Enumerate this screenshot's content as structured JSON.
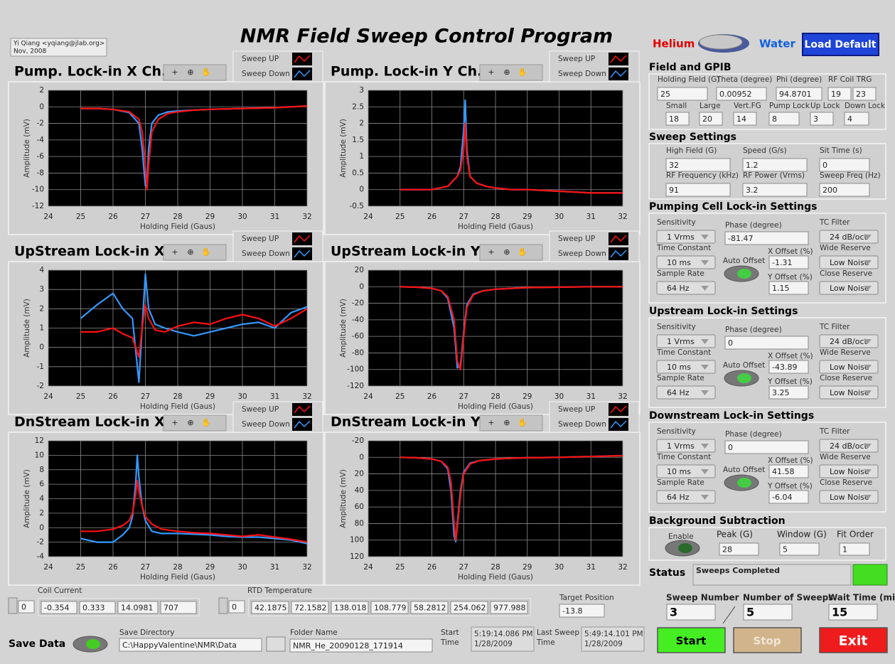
{
  "author": {
    "name": "Yi Qiang <yqiang@jlab.org>",
    "date": "Nov, 2008"
  },
  "title": "NMR Field Sweep Control Program",
  "mode": {
    "left": "Helium",
    "right": "Water"
  },
  "buttons": {
    "load_default": "Load Default",
    "start": "Start",
    "stop": "Stop",
    "exit": "Exit"
  },
  "charts": [
    {
      "title": "Pump. Lock-in X Ch.",
      "x_label": "Holding Field (Gaus)",
      "y_label": "Amplitude (mV)",
      "xlim": [
        24,
        32
      ],
      "xticks": [
        24,
        25,
        26,
        27,
        28,
        29,
        30,
        31,
        32
      ],
      "ylim": [
        -12,
        2
      ],
      "yticks": [
        -12,
        -10,
        -8,
        -6,
        -4,
        -2,
        0,
        2
      ],
      "x": [
        25,
        25.5,
        26,
        26.5,
        26.8,
        26.9,
        27.0,
        27.05,
        27.1,
        27.2,
        27.4,
        27.7,
        28,
        28.5,
        29,
        30,
        31,
        32
      ],
      "series": [
        {
          "name": "Sweep UP",
          "color": "#ff1010",
          "values": [
            -0.2,
            -0.2,
            -0.3,
            -0.6,
            -1.5,
            -3,
            -7,
            -10,
            -7,
            -3,
            -1.5,
            -0.8,
            -0.6,
            -0.4,
            -0.3,
            -0.2,
            -0.1,
            0.1
          ]
        },
        {
          "name": "Sweep Down",
          "color": "#3399ff",
          "values": [
            -0.2,
            -0.2,
            -0.3,
            -0.7,
            -2,
            -5,
            -9.5,
            -9.8,
            -5,
            -2,
            -1,
            -0.6,
            -0.5,
            -0.4,
            -0.3,
            -0.2,
            -0.1,
            0.1
          ]
        }
      ]
    },
    {
      "title": "Pump. Lock-in Y Ch.",
      "x_label": "Holding Field (Gaus)",
      "y_label": "Amplitude (mV)",
      "xlim": [
        24,
        32
      ],
      "xticks": [
        24,
        25,
        26,
        27,
        28,
        29,
        30,
        31,
        32
      ],
      "ylim": [
        -0.5,
        3
      ],
      "yticks": [
        -0.5,
        0,
        0.5,
        1,
        1.5,
        2,
        2.5,
        3
      ],
      "x": [
        25,
        25.5,
        26,
        26.5,
        26.8,
        26.9,
        27.0,
        27.05,
        27.1,
        27.2,
        27.4,
        27.7,
        28,
        28.5,
        29,
        30,
        31,
        32
      ],
      "series": [
        {
          "name": "Sweep UP",
          "color": "#ff1010",
          "values": [
            0,
            0,
            0,
            0.1,
            0.4,
            0.6,
            1.2,
            2.0,
            1.0,
            0.4,
            0.2,
            0.1,
            0.05,
            0,
            0,
            -0.05,
            -0.1,
            -0.1
          ]
        },
        {
          "name": "Sweep Down",
          "color": "#3399ff",
          "values": [
            0,
            0,
            0,
            0.1,
            0.4,
            0.7,
            1.8,
            2.7,
            1.2,
            0.4,
            0.2,
            0.1,
            0.05,
            0,
            0,
            -0.05,
            -0.1,
            -0.1
          ]
        }
      ]
    },
    {
      "title": "UpStream Lock-in X",
      "x_label": "Holding Field (Gaus)",
      "y_label": "Amplitude (mV)",
      "xlim": [
        24,
        32
      ],
      "xticks": [
        24,
        25,
        26,
        27,
        28,
        29,
        30,
        31,
        32
      ],
      "ylim": [
        -2,
        4
      ],
      "yticks": [
        -2,
        -1,
        0,
        1,
        2,
        3,
        4
      ],
      "x": [
        25,
        25.5,
        26,
        26.3,
        26.6,
        26.8,
        26.9,
        27.0,
        27.1,
        27.3,
        27.6,
        28,
        28.5,
        29,
        29.5,
        30,
        30.5,
        31,
        31.5,
        32
      ],
      "series": [
        {
          "name": "Sweep UP",
          "color": "#ff1010",
          "values": [
            0.8,
            0.8,
            1.0,
            0.7,
            0.5,
            -0.5,
            1.0,
            2.2,
            1.5,
            0.9,
            0.8,
            1.1,
            1.3,
            1.2,
            1.5,
            1.7,
            1.5,
            1.1,
            1.5,
            2.0
          ]
        },
        {
          "name": "Sweep Down",
          "color": "#3399ff",
          "values": [
            1.5,
            2.2,
            2.8,
            2.0,
            1.5,
            -1.8,
            1.0,
            3.8,
            2.0,
            1.2,
            1.0,
            0.8,
            0.6,
            0.8,
            1.0,
            1.2,
            1.3,
            1.0,
            1.8,
            2.1
          ]
        }
      ]
    },
    {
      "title": "UpStream Lock-in Y",
      "x_label": "Holding Field (Gaus)",
      "y_label": "Amplitude (mV)",
      "xlim": [
        24,
        32
      ],
      "xticks": [
        24,
        25,
        26,
        27,
        28,
        29,
        30,
        31,
        32
      ],
      "ylim": [
        -120,
        20
      ],
      "yticks": [
        -120,
        -100,
        -80,
        -60,
        -40,
        -20,
        0,
        20
      ],
      "x": [
        25,
        25.5,
        26,
        26.3,
        26.5,
        26.7,
        26.8,
        26.9,
        27.0,
        27.1,
        27.3,
        27.6,
        28,
        28.5,
        29,
        30,
        31,
        32
      ],
      "series": [
        {
          "name": "Sweep UP",
          "color": "#ff1010",
          "values": [
            0,
            -0.5,
            -2,
            -5,
            -12,
            -40,
            -90,
            -100,
            -60,
            -25,
            -10,
            -5,
            -3,
            -2,
            -1,
            -0.5,
            0,
            0
          ]
        },
        {
          "name": "Sweep Down",
          "color": "#3399ff",
          "values": [
            0,
            -0.5,
            -2,
            -5,
            -14,
            -50,
            -98,
            -95,
            -55,
            -22,
            -9,
            -5,
            -3,
            -2,
            -1,
            -0.5,
            0,
            0
          ]
        }
      ]
    },
    {
      "title": "DnStream Lock-in X",
      "x_label": "Holding Field (Gaus)",
      "y_label": "Amplitude (mV)",
      "xlim": [
        24,
        32
      ],
      "xticks": [
        24,
        25,
        26,
        27,
        28,
        29,
        30,
        31,
        32
      ],
      "ylim": [
        -4,
        12
      ],
      "yticks": [
        -4,
        -2,
        0,
        2,
        4,
        6,
        8,
        10,
        12
      ],
      "x": [
        25,
        25.5,
        26,
        26.3,
        26.5,
        26.6,
        26.7,
        26.75,
        26.8,
        26.9,
        27.0,
        27.2,
        27.5,
        28,
        28.5,
        29,
        29.5,
        30,
        30.5,
        31,
        31.5,
        32
      ],
      "series": [
        {
          "name": "Sweep UP",
          "color": "#ff1010",
          "values": [
            -0.5,
            -0.5,
            -0.2,
            0.3,
            1.0,
            2.0,
            4.5,
            6.5,
            5.0,
            3.0,
            1.5,
            0.5,
            -0.2,
            -0.5,
            -0.7,
            -0.8,
            -1.0,
            -1.2,
            -1.0,
            -1.3,
            -1.6,
            -2.0
          ]
        },
        {
          "name": "Sweep Down",
          "color": "#3399ff",
          "values": [
            -1.5,
            -2.0,
            -2.0,
            -1.0,
            0,
            1.5,
            6,
            10,
            7,
            3,
            1,
            -0.5,
            -0.8,
            -0.8,
            -0.9,
            -1.0,
            -1.2,
            -1.3,
            -1.3,
            -1.5,
            -1.7,
            -2.2
          ]
        }
      ]
    },
    {
      "title": "DnStream Lock-in Y",
      "x_label": "Holding Field (Gaus)",
      "y_label": "Amplitude (mV)",
      "xlim": [
        24,
        32
      ],
      "xticks": [
        24,
        25,
        26,
        27,
        28,
        29,
        30,
        31,
        32
      ],
      "ylim": [
        120,
        -20
      ],
      "yticks": [
        -20,
        0,
        20,
        40,
        60,
        80,
        100,
        120
      ],
      "x": [
        25,
        25.5,
        26,
        26.3,
        26.5,
        26.6,
        26.7,
        26.75,
        26.8,
        26.9,
        27.0,
        27.2,
        27.5,
        28,
        28.5,
        29,
        30,
        31,
        32
      ],
      "series": [
        {
          "name": "Sweep UP",
          "color": "#ff1010",
          "values": [
            0,
            0.5,
            2,
            5,
            12,
            30,
            80,
            100,
            85,
            45,
            20,
            8,
            4,
            2,
            1,
            0.5,
            0,
            -1,
            -2
          ]
        },
        {
          "name": "Sweep Down",
          "color": "#3399ff",
          "values": [
            0,
            0.5,
            2,
            5,
            14,
            40,
            95,
            102,
            80,
            40,
            18,
            7,
            4,
            2,
            1,
            0.5,
            0,
            -1,
            -2
          ]
        }
      ]
    }
  ],
  "field_gpib": {
    "title": "Field and GPIB",
    "fields": [
      {
        "label": "Holding Field (G)",
        "value": "25"
      },
      {
        "label": "Theta (degree)",
        "value": "0.00952"
      },
      {
        "label": "Phi (degree)",
        "value": "94.8701"
      },
      {
        "label": "RF Coil TRG",
        "values": [
          "19",
          "23"
        ]
      },
      {
        "label": "Small",
        "value": "18"
      },
      {
        "label": "Large",
        "value": "20"
      },
      {
        "label": "Vert.FG",
        "value": "14"
      },
      {
        "label": "Pump Lock",
        "value": "8"
      },
      {
        "label": "Up Lock",
        "value": "3"
      },
      {
        "label": "Down Lock",
        "value": "4"
      }
    ]
  },
  "sweep_settings": {
    "title": "Sweep Settings",
    "fields": [
      {
        "label": "High Field (G)",
        "value": "32"
      },
      {
        "label": "Speed (G/s)",
        "value": "1.2"
      },
      {
        "label": "Sit Time (s)",
        "value": "0"
      },
      {
        "label": "RF Frequency (kHz)",
        "value": "91"
      },
      {
        "label": "RF Power (Vrms)",
        "value": "3.2"
      },
      {
        "label": "Sweep Freq (Hz)",
        "value": "200"
      }
    ]
  },
  "lockins": [
    {
      "title": "Pumping Cell Lock-in Settings",
      "sensitivity": {
        "label": "Sensitivity",
        "value": "1 Vrms"
      },
      "time_constant": {
        "label": "Time Constant",
        "value": "10 ms"
      },
      "sample_rate": {
        "label": "Sample Rate",
        "value": "64 Hz"
      },
      "phase": {
        "label": "Phase (degree)",
        "value": "-81.47"
      },
      "auto_offset": "Auto Offset",
      "x_offset": {
        "label": "X Offset (%)",
        "value": "-1.31"
      },
      "y_offset": {
        "label": "Y Offset (%)",
        "value": "1.15"
      },
      "tc_filter": {
        "label": "TC Filter",
        "value": "24 dB/oct"
      },
      "wide_reserve": {
        "label": "Wide Reserve",
        "value": "Low Noise"
      },
      "close_reserve": {
        "label": "Close Reserve",
        "value": "Low Noise"
      }
    },
    {
      "title": "Upstream Lock-in Settings",
      "sensitivity": {
        "label": "Sensitivity",
        "value": "1 Vrms"
      },
      "time_constant": {
        "label": "Time Constant",
        "value": "10 ms"
      },
      "sample_rate": {
        "label": "Sample Rate",
        "value": "64 Hz"
      },
      "phase": {
        "label": "Phase (degree)",
        "value": "0"
      },
      "auto_offset": "Auto Offset",
      "x_offset": {
        "label": "X Offset (%)",
        "value": "-43.89"
      },
      "y_offset": {
        "label": "Y Offset (%)",
        "value": "3.25"
      },
      "tc_filter": {
        "label": "TC Filter",
        "value": "24 dB/oct"
      },
      "wide_reserve": {
        "label": "Wide Reserve",
        "value": "Low Noise"
      },
      "close_reserve": {
        "label": "Close Reserve",
        "value": "Low Noise"
      }
    },
    {
      "title": "Downstream Lock-in Settings",
      "sensitivity": {
        "label": "Sensitivity",
        "value": "1 Vrms"
      },
      "time_constant": {
        "label": "Time Constant",
        "value": "10 ms"
      },
      "sample_rate": {
        "label": "Sample Rate",
        "value": "64 Hz"
      },
      "phase": {
        "label": "Phase (degree)",
        "value": "0"
      },
      "auto_offset": "Auto Offset",
      "x_offset": {
        "label": "X Offset (%)",
        "value": "41.58"
      },
      "y_offset": {
        "label": "Y Offset (%)",
        "value": "-6.04"
      },
      "tc_filter": {
        "label": "TC Filter",
        "value": "24 dB/oct"
      },
      "wide_reserve": {
        "label": "Wide Reserve",
        "value": "Low Noise"
      },
      "close_reserve": {
        "label": "Close Reserve",
        "value": "Low Noise"
      }
    }
  ],
  "background": {
    "title": "Background Subtraction",
    "enable": "Enable",
    "fields": [
      {
        "label": "Peak (G)",
        "value": "28"
      },
      {
        "label": "Window (G)",
        "value": "5"
      },
      {
        "label": "Fit Order",
        "value": "1"
      }
    ]
  },
  "status": {
    "label": "Status",
    "value": "Sweeps Completed"
  },
  "sweep_counts": [
    {
      "label": "Sweep Number",
      "value": "3"
    },
    {
      "label": "Number of Sweeps",
      "value": "5"
    },
    {
      "label": "Wait Time (min)",
      "value": "15"
    }
  ],
  "coil_current": {
    "label": "Coil Current",
    "index": "0",
    "values": [
      "-0.354",
      "0.333",
      "14.0981",
      "707"
    ]
  },
  "rtd_temperature": {
    "label": "RTD Temperature",
    "index": "0",
    "values": [
      "42.1875",
      "72.1582",
      "138.018",
      "108.779",
      "58.2812",
      "254.062",
      "977.988"
    ]
  },
  "target_position": {
    "label": "Target Position",
    "value": "-13.8"
  },
  "save": {
    "label": "Save Data",
    "directory_label": "Save Directory",
    "directory": "C:\\HappyValentine\\NMR\\Data",
    "folder_label": "Folder Name",
    "folder": "NMR_He_20090128_171914"
  },
  "start_time": {
    "label": "Start Time",
    "time": "5:19:14.086 PM",
    "date": "1/28/2009"
  },
  "last_sweep_time": {
    "label": "Last Sweep Time",
    "time": "5:49:14.101 PM",
    "date": "1/28/2009"
  }
}
